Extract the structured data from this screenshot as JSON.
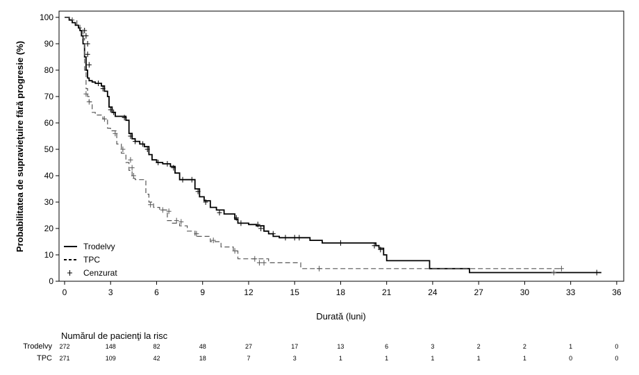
{
  "chart_data": {
    "type": "line",
    "subtype": "kaplan-meier",
    "title": "",
    "xlabel": "Durată (luni)",
    "ylabel": "Probabilitatea de supravieţuire fără progresie (%)",
    "xlim": [
      0,
      36
    ],
    "ylim": [
      0,
      100
    ],
    "xticks": [
      0,
      3,
      6,
      9,
      12,
      15,
      18,
      21,
      24,
      27,
      30,
      33,
      36
    ],
    "yticks": [
      0,
      10,
      20,
      30,
      40,
      50,
      60,
      70,
      80,
      90,
      100
    ],
    "grid": false,
    "legend_position": "bottom-left",
    "legend": {
      "trodelvy": "Trodelvy",
      "tpc": "TPC",
      "censored": "Cenzurat"
    },
    "series": [
      {
        "name": "Trodelvy",
        "color": "#000000",
        "line_style": "solid",
        "x": [
          0,
          0.3,
          0.5,
          0.7,
          0.9,
          1.0,
          1.1,
          1.2,
          1.3,
          1.4,
          1.5,
          1.6,
          1.8,
          2.0,
          2.4,
          2.6,
          2.8,
          2.9,
          3.1,
          3.3,
          3.6,
          4.0,
          4.2,
          4.4,
          4.6,
          4.9,
          5.2,
          5.5,
          5.7,
          6.0,
          6.4,
          6.9,
          7.2,
          7.5,
          8.1,
          8.5,
          8.8,
          9.1,
          9.5,
          9.9,
          10.4,
          10.8,
          11.1,
          11.3,
          12.0,
          12.5,
          13.0,
          13.3,
          13.6,
          14.0,
          16.0,
          16.8,
          20.0,
          20.3,
          20.5,
          20.8,
          21.0,
          21.2,
          23.6,
          23.8,
          26.2,
          26.4,
          35.0
        ],
        "y": [
          100,
          99,
          98,
          97,
          96,
          95,
          93,
          90,
          85,
          80,
          77,
          76,
          75.5,
          75,
          74,
          72,
          70,
          66,
          64,
          62.5,
          62.5,
          61,
          56,
          54,
          53,
          52,
          51,
          48,
          46,
          45,
          44.5,
          43.5,
          41,
          38.5,
          38.5,
          35,
          32,
          30.5,
          28,
          27,
          25.5,
          25.5,
          23.5,
          22,
          21.5,
          21,
          19,
          18,
          17,
          16.5,
          15.5,
          14.5,
          14.5,
          13.5,
          12.5,
          10,
          7.8,
          7.8,
          7.8,
          4.8,
          4.8,
          3.3,
          3.3
        ],
        "censored": [
          [
            1.3,
            95
          ],
          [
            1.4,
            93
          ],
          [
            1.5,
            90
          ],
          [
            1.5,
            86
          ],
          [
            1.6,
            82
          ],
          [
            2.2,
            75
          ],
          [
            2.5,
            73
          ],
          [
            3.0,
            65
          ],
          [
            3.2,
            64
          ],
          [
            3.9,
            62
          ],
          [
            4.3,
            55
          ],
          [
            4.6,
            53
          ],
          [
            5.1,
            52
          ],
          [
            5.4,
            50
          ],
          [
            6.1,
            45
          ],
          [
            6.7,
            44.5
          ],
          [
            7.1,
            43
          ],
          [
            7.7,
            38.5
          ],
          [
            8.3,
            38.5
          ],
          [
            8.7,
            34
          ],
          [
            9.2,
            30
          ],
          [
            10.1,
            26
          ],
          [
            11.2,
            24
          ],
          [
            11.5,
            22
          ],
          [
            12.6,
            21.5
          ],
          [
            12.8,
            20
          ],
          [
            13.6,
            18
          ],
          [
            14.4,
            16.5
          ],
          [
            15.0,
            16.5
          ],
          [
            15.3,
            16.5
          ],
          [
            18.0,
            14.5
          ],
          [
            20.2,
            13.5
          ],
          [
            20.6,
            12
          ],
          [
            34.7,
            3.3
          ]
        ]
      },
      {
        "name": "TPC",
        "color": "#555555",
        "line_style": "dashed",
        "x": [
          0,
          0.5,
          0.8,
          1.0,
          1.2,
          1.3,
          1.4,
          1.5,
          1.6,
          1.8,
          2.0,
          2.5,
          2.8,
          3.0,
          3.4,
          3.7,
          4.0,
          4.2,
          4.4,
          4.6,
          5.0,
          5.3,
          5.5,
          5.8,
          6.2,
          6.7,
          7.0,
          7.5,
          8.0,
          8.5,
          9.5,
          10.2,
          11.0,
          11.3,
          12.5,
          13.3,
          15.2,
          15.4,
          32.3
        ],
        "y": [
          100,
          99,
          97,
          96,
          92,
          80,
          73,
          70,
          68,
          64,
          63,
          61.5,
          58,
          57,
          52,
          48.5,
          45,
          42,
          39,
          38.5,
          38.5,
          33,
          30,
          28,
          27,
          23,
          22,
          21,
          19,
          17,
          15,
          13,
          11.5,
          8.5,
          8.5,
          7,
          7,
          4.8,
          4.8
        ],
        "censored": [
          [
            1.4,
            71
          ],
          [
            1.6,
            68
          ],
          [
            2.6,
            61.5
          ],
          [
            3.3,
            56
          ],
          [
            3.8,
            50
          ],
          [
            4.3,
            46
          ],
          [
            4.4,
            43
          ],
          [
            4.5,
            40
          ],
          [
            5.6,
            29
          ],
          [
            6.4,
            27
          ],
          [
            6.8,
            26.5
          ],
          [
            7.3,
            23
          ],
          [
            7.6,
            22.5
          ],
          [
            8.6,
            18
          ],
          [
            9.7,
            15.5
          ],
          [
            11.1,
            11.5
          ],
          [
            12.4,
            8.5
          ],
          [
            12.7,
            7
          ],
          [
            13.0,
            7
          ],
          [
            16.6,
            4.8
          ],
          [
            31.9,
            3.3
          ],
          [
            32.4,
            4.8
          ]
        ]
      }
    ],
    "risk_table": {
      "title": "Numărul de pacienţi la risc",
      "timepoints": [
        0,
        3,
        6,
        9,
        12,
        15,
        18,
        21,
        24,
        27,
        30,
        33,
        36
      ],
      "rows": [
        {
          "name": "Trodelvy",
          "values": [
            272,
            148,
            82,
            48,
            27,
            17,
            13,
            6,
            3,
            2,
            2,
            1,
            0
          ]
        },
        {
          "name": "TPC",
          "values": [
            271,
            109,
            42,
            18,
            7,
            3,
            1,
            1,
            1,
            1,
            1,
            0,
            0
          ]
        }
      ]
    }
  }
}
